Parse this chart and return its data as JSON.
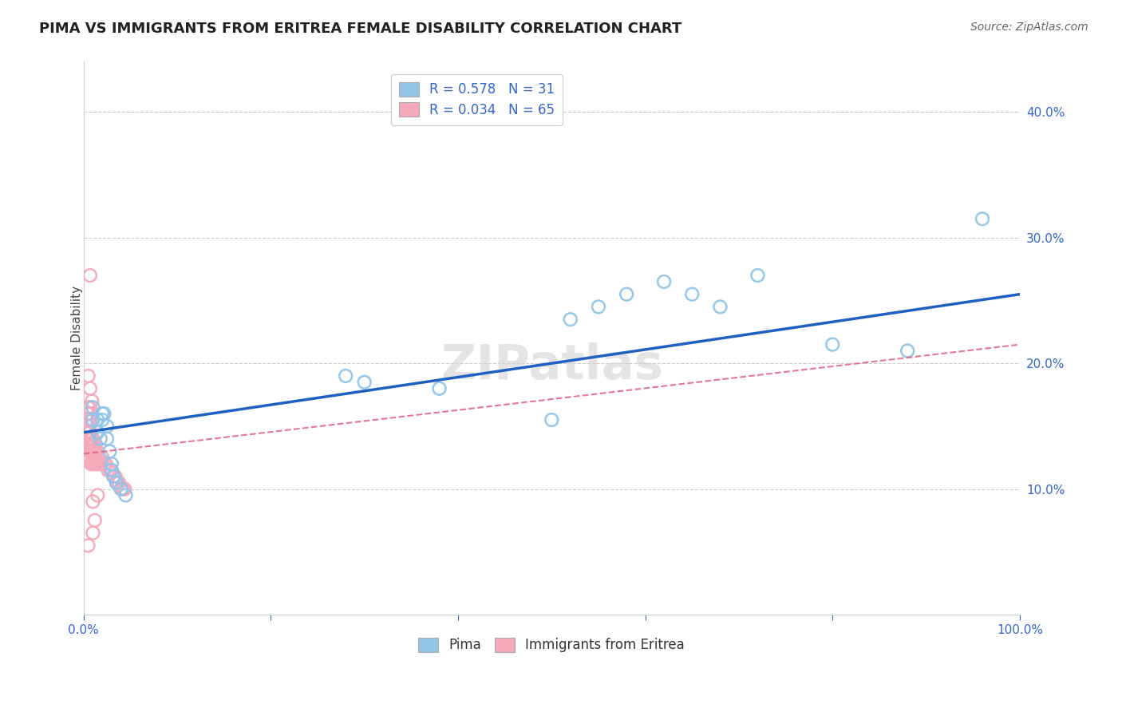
{
  "title": "PIMA VS IMMIGRANTS FROM ERITREA FEMALE DISABILITY CORRELATION CHART",
  "source": "Source: ZipAtlas.com",
  "ylabel": "Female Disability",
  "xlim": [
    0.0,
    1.0
  ],
  "ylim": [
    0.0,
    0.44
  ],
  "xticks": [
    0.0,
    0.2,
    0.4,
    0.6,
    0.8,
    1.0
  ],
  "xticklabels": [
    "0.0%",
    "",
    "",
    "",
    "",
    "100.0%"
  ],
  "yticks": [
    0.1,
    0.2,
    0.3,
    0.4
  ],
  "yticklabels": [
    "10.0%",
    "20.0%",
    "30.0%",
    "40.0%"
  ],
  "legend1_label": "R = 0.578   N = 31",
  "legend2_label": "R = 0.034   N = 65",
  "pima_color": "#92C5E8",
  "eritrea_color": "#F4AABB",
  "pima_line_color": "#2060C0",
  "eritrea_line_color": "#E06080",
  "pima_x": [
    0.01,
    0.01,
    0.015,
    0.015,
    0.018,
    0.02,
    0.02,
    0.022,
    0.025,
    0.025,
    0.028,
    0.03,
    0.03,
    0.032,
    0.035,
    0.04,
    0.045,
    0.28,
    0.3,
    0.38,
    0.5,
    0.52,
    0.55,
    0.58,
    0.62,
    0.65,
    0.68,
    0.72,
    0.8,
    0.88,
    0.96
  ],
  "pima_y": [
    0.155,
    0.165,
    0.155,
    0.145,
    0.14,
    0.16,
    0.155,
    0.16,
    0.15,
    0.14,
    0.13,
    0.12,
    0.115,
    0.11,
    0.105,
    0.1,
    0.095,
    0.19,
    0.185,
    0.18,
    0.155,
    0.235,
    0.245,
    0.255,
    0.265,
    0.255,
    0.245,
    0.27,
    0.215,
    0.21,
    0.315
  ],
  "eritrea_x": [
    0.002,
    0.003,
    0.003,
    0.004,
    0.004,
    0.004,
    0.005,
    0.005,
    0.005,
    0.005,
    0.005,
    0.006,
    0.006,
    0.006,
    0.006,
    0.007,
    0.007,
    0.007,
    0.007,
    0.007,
    0.008,
    0.008,
    0.008,
    0.008,
    0.009,
    0.009,
    0.009,
    0.01,
    0.01,
    0.01,
    0.011,
    0.011,
    0.012,
    0.012,
    0.013,
    0.013,
    0.014,
    0.015,
    0.015,
    0.016,
    0.017,
    0.018,
    0.019,
    0.02,
    0.022,
    0.024,
    0.026,
    0.028,
    0.03,
    0.032,
    0.034,
    0.036,
    0.038,
    0.04,
    0.042,
    0.044,
    0.01,
    0.015,
    0.005,
    0.007,
    0.009,
    0.01,
    0.012,
    0.007,
    0.005
  ],
  "eritrea_y": [
    0.145,
    0.135,
    0.155,
    0.14,
    0.15,
    0.16,
    0.135,
    0.14,
    0.145,
    0.155,
    0.165,
    0.13,
    0.14,
    0.15,
    0.16,
    0.125,
    0.135,
    0.145,
    0.155,
    0.165,
    0.12,
    0.13,
    0.14,
    0.155,
    0.12,
    0.13,
    0.14,
    0.125,
    0.135,
    0.14,
    0.12,
    0.13,
    0.125,
    0.135,
    0.12,
    0.13,
    0.125,
    0.12,
    0.13,
    0.125,
    0.12,
    0.12,
    0.12,
    0.125,
    0.12,
    0.12,
    0.115,
    0.115,
    0.115,
    0.11,
    0.11,
    0.105,
    0.105,
    0.1,
    0.1,
    0.1,
    0.09,
    0.095,
    0.19,
    0.18,
    0.17,
    0.065,
    0.075,
    0.27,
    0.055
  ],
  "pima_line_x": [
    0.0,
    1.0
  ],
  "pima_line_y": [
    0.145,
    0.255
  ],
  "eritrea_line_x": [
    0.0,
    1.0
  ],
  "eritrea_line_y": [
    0.128,
    0.215
  ]
}
